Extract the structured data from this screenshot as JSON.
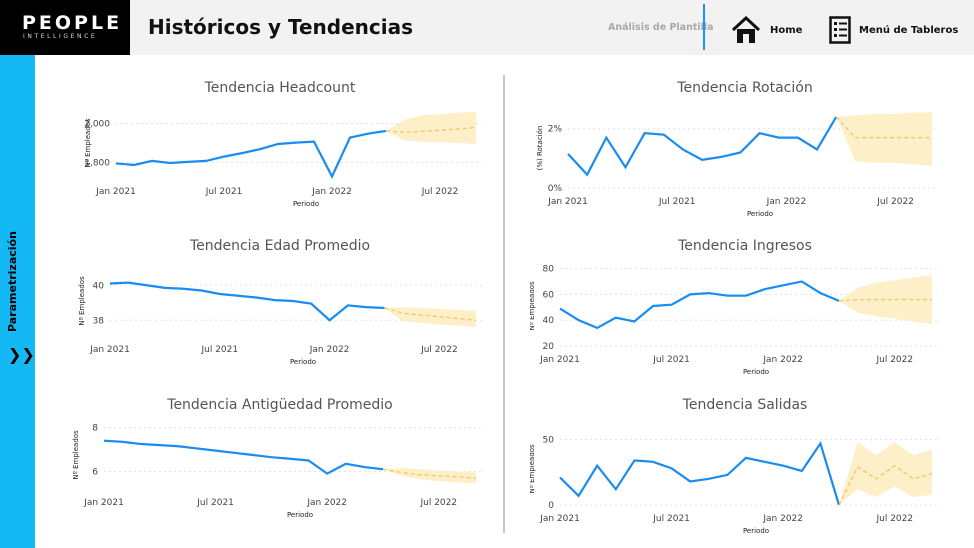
{
  "header": {
    "logo_main": "PEOPLE",
    "logo_sub": "INTELLIGENCE",
    "title": "Históricos y Tendencias",
    "analysis_link": "Análisis de Plantilla",
    "home_label": "Home",
    "menu_label": "Menú de Tableros",
    "accent": "#1e90ff"
  },
  "sidebar": {
    "label": "Parametrización",
    "arrow_icon": "double-chevron-right-icon",
    "color": "#14b8f5"
  },
  "colors": {
    "line": "#1a8cf0",
    "forecast": "#f5c15a",
    "band": "#fdefc8"
  },
  "chart_data": [
    {
      "type": "line",
      "title": "Tendencia Headcount",
      "ylabel": "Nº Empleados",
      "xlabel": "Periodo",
      "x_ticks": [
        "Jan 2021",
        "Jul 2021",
        "Jan 2022",
        "Jul 2022"
      ],
      "y_ticks": [
        "2,000",
        "1,800"
      ],
      "y_tick_values": [
        2000,
        1800
      ],
      "ylim": [
        1720,
        2080
      ],
      "values": [
        1795,
        1787,
        1808,
        1797,
        1803,
        1808,
        1830,
        1848,
        1868,
        1895,
        1902,
        1907,
        1728,
        1928,
        1948,
        1962
      ],
      "forecast": [
        1962,
        1955,
        1960,
        1966,
        1972,
        1980
      ],
      "band_upper": [
        1962,
        2018,
        2043,
        2048,
        2056,
        2060
      ],
      "band_lower": [
        1962,
        1915,
        1906,
        1903,
        1900,
        1895
      ]
    },
    {
      "type": "line",
      "title": "Tendencia Rotación",
      "ylabel": "(%) Rotación",
      "xlabel": "Periodo",
      "x_ticks": [
        "Jan 2021",
        "Jul 2021",
        "Jan 2022",
        "Jul 2022"
      ],
      "y_ticks": [
        "2%",
        "0%"
      ],
      "y_tick_values": [
        2,
        0
      ],
      "ylim": [
        0,
        2.7
      ],
      "values": [
        1.15,
        0.45,
        1.7,
        0.7,
        1.85,
        1.8,
        1.3,
        0.95,
        1.05,
        1.2,
        1.85,
        1.7,
        1.7,
        1.3,
        2.4
      ],
      "forecast": [
        2.4,
        1.7,
        1.7,
        1.7,
        1.7,
        1.7
      ],
      "band_upper": [
        2.4,
        2.45,
        2.5,
        2.5,
        2.55,
        2.55
      ],
      "band_lower": [
        2.4,
        0.9,
        0.85,
        0.85,
        0.8,
        0.75
      ]
    },
    {
      "type": "line",
      "title": "Tendencia Edad Promedio",
      "ylabel": "Nº Empleados",
      "xlabel": "Periodo",
      "x_ticks": [
        "Jan 2021",
        "Jul 2021",
        "Jan 2022",
        "Jul 2022"
      ],
      "y_ticks": [
        "40",
        "38"
      ],
      "y_tick_values": [
        40,
        38
      ],
      "ylim": [
        37.1,
        41.1
      ],
      "values": [
        40.1,
        40.15,
        40.0,
        39.85,
        39.8,
        39.7,
        39.5,
        39.4,
        39.3,
        39.15,
        39.1,
        38.95,
        38.0,
        38.85,
        38.75,
        38.7
      ],
      "forecast": [
        38.7,
        38.4,
        38.3,
        38.2,
        38.1,
        38.0
      ],
      "band_upper": [
        38.7,
        38.75,
        38.7,
        38.65,
        38.6,
        38.55
      ],
      "band_lower": [
        38.7,
        37.95,
        37.85,
        37.75,
        37.7,
        37.6
      ]
    },
    {
      "type": "line",
      "title": "Tendencia Ingresos",
      "ylabel": "Nº Empleados",
      "xlabel": "Periodo",
      "x_ticks": [
        "Jan 2021",
        "Jul 2021",
        "Jan 2022",
        "Jul 2022"
      ],
      "y_ticks": [
        "80",
        "60",
        "40",
        "20"
      ],
      "y_tick_values": [
        80,
        60,
        40,
        20
      ],
      "ylim": [
        20,
        82
      ],
      "values": [
        49,
        40,
        34,
        42,
        39,
        51,
        52,
        60,
        61,
        59,
        59,
        64,
        67,
        70,
        61,
        55
      ],
      "forecast": [
        55,
        56,
        56,
        56,
        56,
        56
      ],
      "band_upper": [
        55,
        65,
        69,
        71,
        73,
        75
      ],
      "band_lower": [
        55,
        46,
        43,
        41,
        39,
        37
      ]
    },
    {
      "type": "line",
      "title": "Tendencia Antigüedad Promedio",
      "ylabel": "Nº Empleados",
      "xlabel": "Periodo",
      "x_ticks": [
        "Jan 2021",
        "Jul 2021",
        "Jan 2022",
        "Jul 2022"
      ],
      "y_ticks": [
        "8",
        "6"
      ],
      "y_tick_values": [
        8,
        6
      ],
      "ylim": [
        5.2,
        8.3
      ],
      "values": [
        7.4,
        7.35,
        7.25,
        7.2,
        7.15,
        7.05,
        6.95,
        6.85,
        6.75,
        6.65,
        6.58,
        6.5,
        5.9,
        6.35,
        6.2,
        6.1
      ],
      "forecast": [
        6.1,
        5.95,
        5.85,
        5.8,
        5.75,
        5.7
      ],
      "band_upper": [
        6.1,
        6.15,
        6.1,
        6.05,
        6.0,
        5.95
      ],
      "band_lower": [
        6.1,
        5.8,
        5.65,
        5.55,
        5.5,
        5.45
      ]
    },
    {
      "type": "line",
      "title": "Tendencia Salidas",
      "ylabel": "Nº Empleados",
      "xlabel": "Periodo",
      "x_ticks": [
        "Jan 2021",
        "Jul 2021",
        "Jan 2022",
        "Jul 2022"
      ],
      "y_ticks": [
        "50",
        "0"
      ],
      "y_tick_values": [
        50,
        0
      ],
      "ylim": [
        0,
        55
      ],
      "values": [
        21,
        7,
        30,
        12,
        34,
        33,
        28,
        18,
        20,
        23,
        36,
        33,
        30,
        26,
        47,
        0
      ],
      "forecast": [
        0,
        29,
        20,
        30,
        20,
        24
      ],
      "band_upper": [
        0,
        48,
        38,
        48,
        38,
        42
      ],
      "band_lower": [
        0,
        12,
        6,
        14,
        6,
        8
      ]
    }
  ]
}
